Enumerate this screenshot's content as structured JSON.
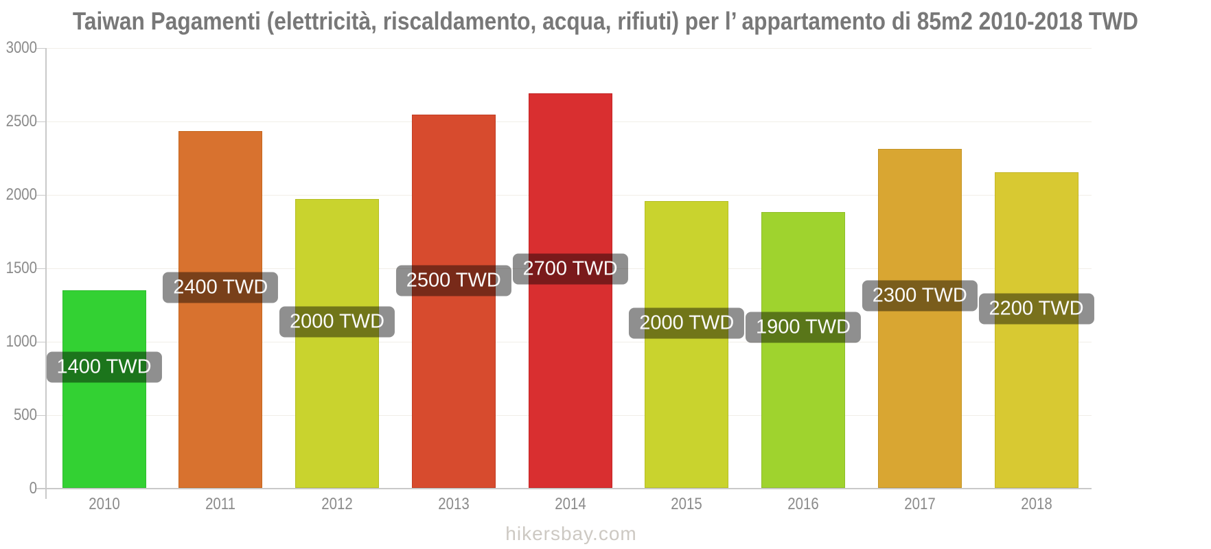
{
  "chart_data": {
    "type": "bar",
    "title": "Taiwan Pagamenti (elettricità, riscaldamento, acqua, rifiuti) per l’ appartamento di 85m2 2010-2018 TWD",
    "unit": "TWD",
    "categories": [
      "2010",
      "2011",
      "2012",
      "2013",
      "2014",
      "2015",
      "2016",
      "2017",
      "2018"
    ],
    "values": [
      1400,
      2400,
      2000,
      2500,
      2700,
      2000,
      1900,
      2300,
      2200
    ],
    "value_labels": [
      "1400 TWD",
      "2400 TWD",
      "2000 TWD",
      "2500 TWD",
      "2700 TWD",
      "2000 TWD",
      "1900 TWD",
      "2300 TWD",
      "2200 TWD"
    ],
    "precise_values": [
      1350,
      2435,
      1972,
      2547,
      2692,
      1958,
      1883,
      2313,
      2154
    ],
    "bar_colors": [
      "#33d133",
      "#d8722f",
      "#c9d32e",
      "#d74b2e",
      "#d92f30",
      "#c9d32e",
      "#9fd32e",
      "#d9a632",
      "#d8c932"
    ],
    "bar_border_colors": [
      "#2fbc2f",
      "#c5661d",
      "#b5be24",
      "#c23d23",
      "#c32424",
      "#b5be24",
      "#8fbe28",
      "#c49425",
      "#c4b628"
    ],
    "label_y_centers": [
      535,
      419,
      469,
      409,
      392,
      471,
      477,
      431,
      450
    ],
    "ylim": [
      0,
      3000
    ],
    "yticks": [
      0,
      500,
      1000,
      1500,
      2000,
      2500,
      3000
    ],
    "grid": true,
    "legend": false,
    "xlabel": "",
    "ylabel": "",
    "label_badge_bg": "rgba(0,0,0,0.44)",
    "label_badge_text_color": "#fafafa"
  },
  "colors": {
    "axis": "#c9c9c9",
    "gridline": "#f1eee8",
    "tick_labels": "#8a8a8a",
    "title": "#787878",
    "watermark": "#cdc9c3"
  },
  "watermark": "hikersbay.com"
}
